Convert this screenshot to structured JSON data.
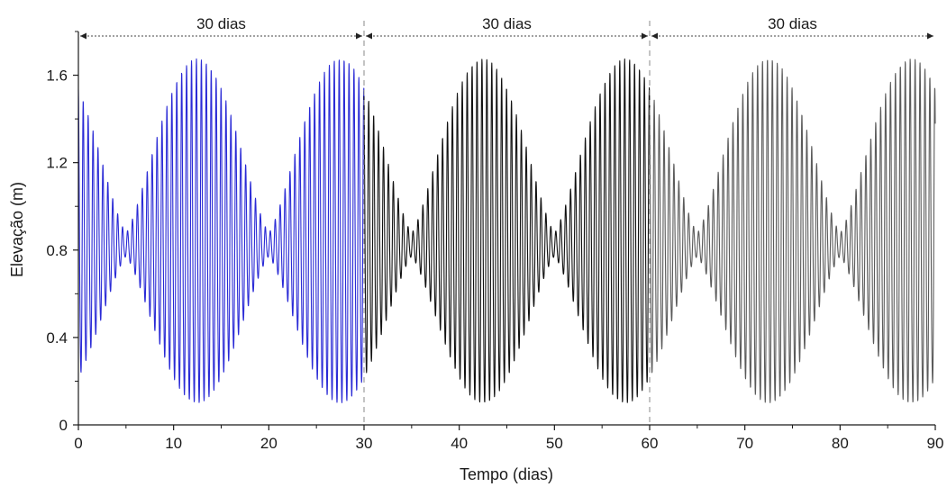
{
  "chart_data": {
    "type": "line",
    "xlabel": "Tempo (dias)",
    "ylabel": "Elevação (m)",
    "xlim": [
      0,
      90
    ],
    "ylim": [
      0,
      1.8
    ],
    "x_ticks": [
      0,
      10,
      20,
      30,
      40,
      50,
      60,
      70,
      80,
      90
    ],
    "x_tick_labels": [
      "0",
      "10",
      "20",
      "30",
      "40",
      "50",
      "60",
      "70",
      "80",
      "90"
    ],
    "y_ticks": [
      0,
      0.4,
      0.8,
      1.2,
      1.6
    ],
    "y_tick_labels": [
      "0",
      "0.4",
      "0.8",
      "1.2",
      "1.6"
    ],
    "grid": false,
    "periods": [
      {
        "label": "30 dias",
        "start": 0,
        "end": 30
      },
      {
        "label": "30 dias",
        "start": 30,
        "end": 60
      },
      {
        "label": "30 dias",
        "start": 60,
        "end": 90
      }
    ],
    "period_dividers": [
      30,
      60
    ],
    "series": [
      {
        "x_start": 0,
        "x_end": 30,
        "color": "#2a2ad6",
        "mean": 0.82,
        "envelope_max_amplitude": 0.87,
        "envelope_min_amplitude": 0.06,
        "cycle_days": 0.517,
        "envelope_cycle_days": 15,
        "envelope_phase_day": 12.5
      },
      {
        "x_start": 30,
        "x_end": 60,
        "color": "#111111",
        "mean": 0.82,
        "envelope_max_amplitude": 0.87,
        "envelope_min_amplitude": 0.06,
        "cycle_days": 0.517,
        "envelope_cycle_days": 15,
        "envelope_phase_day": 12.5
      },
      {
        "x_start": 60,
        "x_end": 90,
        "color": "#5a5a5a",
        "mean": 0.82,
        "envelope_max_amplitude": 0.87,
        "envelope_min_amplitude": 0.06,
        "cycle_days": 0.517,
        "envelope_cycle_days": 15,
        "envelope_phase_day": 12.5
      }
    ]
  }
}
